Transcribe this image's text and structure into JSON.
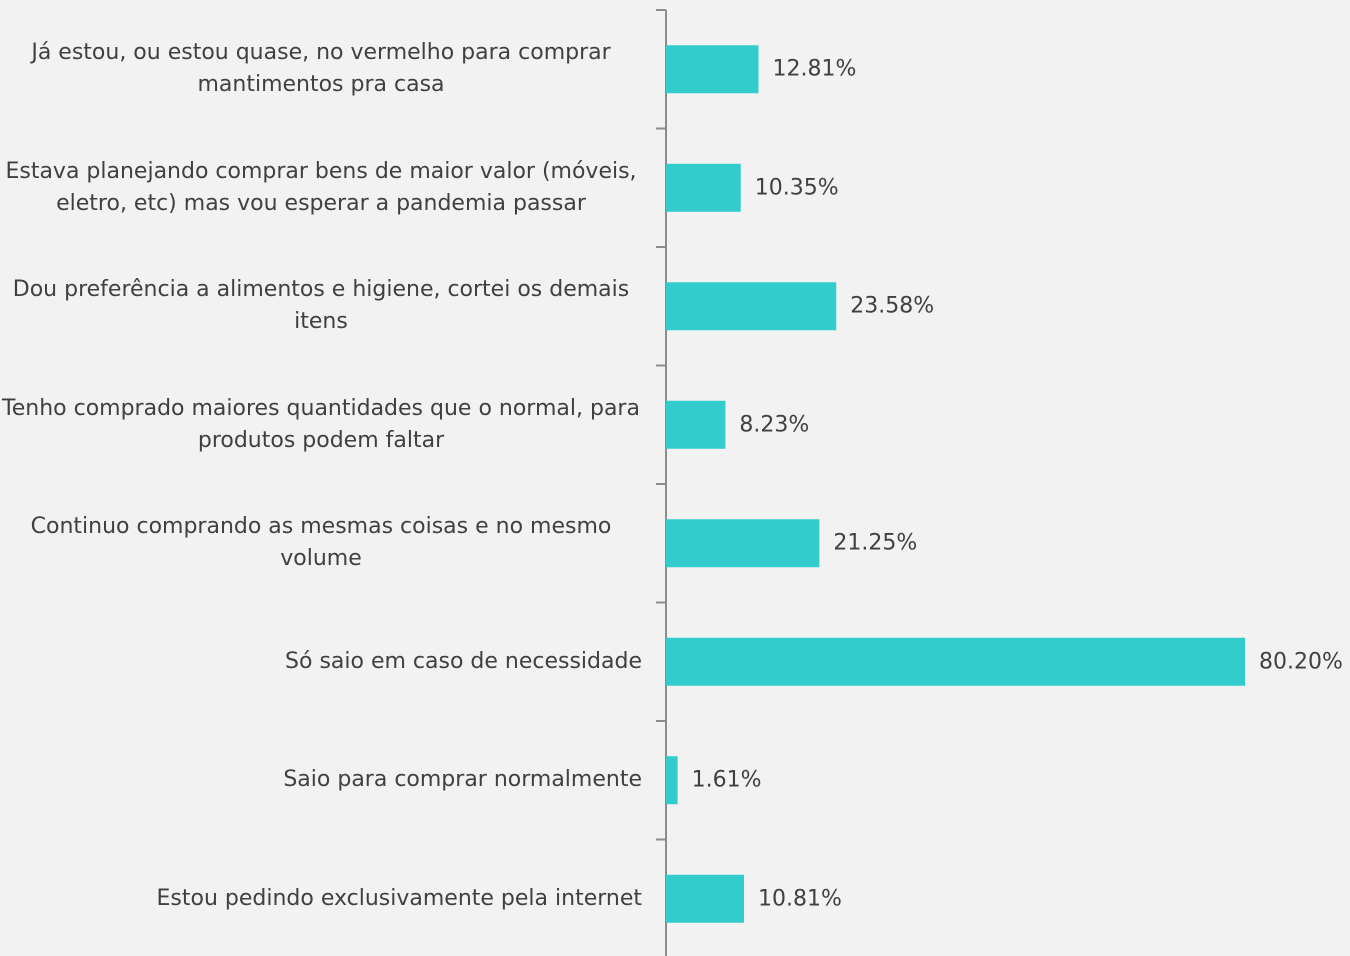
{
  "chart_data": {
    "type": "barh",
    "categories": [
      "Já estou, ou estou quase, no vermelho para comprar mantimentos pra casa",
      "Estava planejando comprar bens de maior valor (móveis, eletro, etc) mas vou esperar a pandemia passar",
      "Dou preferência a alimentos e higiene, cortei os demais itens",
      "Tenho comprado maiores quantidades que o normal, para produtos podem faltar",
      "Continuo comprando as mesmas coisas e no mesmo volume",
      "Só saio em caso de necessidade",
      "Saio para comprar normalmente",
      "Estou pedindo exclusivamente pela internet"
    ],
    "values": [
      12.81,
      10.35,
      23.58,
      8.23,
      21.25,
      80.2,
      1.61,
      10.81
    ],
    "value_labels": [
      "12.81%",
      "10.35%",
      "23.58%",
      "8.23%",
      "21.25%",
      "80.20%",
      "1.61%",
      "10.81%"
    ],
    "color": "#33cccc"
  }
}
